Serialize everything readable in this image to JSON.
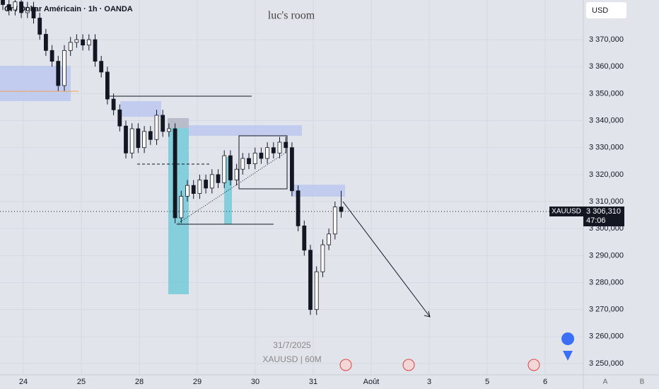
{
  "chart_data": {
    "type": "candlestick",
    "title": "Or / Dollar Américain · 1h · OANDA",
    "watermark": "luc's room",
    "currency": "USD",
    "symbol": "XAUUSD",
    "price_tag": "3 306,310",
    "countdown": "47:06",
    "date_label": "31/7/2025",
    "interval_label": "XAUUSD | 60M",
    "scale_buttons": [
      "A",
      "B"
    ],
    "categories": [
      "24",
      "25",
      "28",
      "29",
      "30",
      "31",
      "Août",
      "3",
      "5",
      "6"
    ],
    "open": [
      3385,
      3383,
      3381,
      3384,
      3380,
      3382,
      3378,
      3372,
      3366,
      3362,
      3353,
      3366,
      3369,
      3370,
      3368,
      3370,
      3362,
      3358,
      3348,
      3344,
      3338,
      3328,
      3337,
      3330,
      3336,
      3333,
      3342,
      3336,
      3337,
      3304,
      3312,
      3316,
      3313,
      3318,
      3315,
      3320,
      3317,
      3327,
      3318,
      3322,
      3326,
      3324,
      3328,
      3326,
      3330,
      3328,
      3332,
      3330,
      3314,
      3301,
      3292,
      3270,
      3284,
      3294,
      3298,
      3308
    ],
    "high": [
      3387,
      3385,
      3386,
      3386,
      3384,
      3384,
      3380,
      3374,
      3368,
      3364,
      3368,
      3371,
      3372,
      3372,
      3372,
      3372,
      3364,
      3360,
      3350,
      3346,
      3340,
      3339,
      3339,
      3338,
      3338,
      3344,
      3344,
      3339,
      3339,
      3314,
      3318,
      3318,
      3320,
      3320,
      3322,
      3322,
      3329,
      3329,
      3324,
      3328,
      3328,
      3330,
      3330,
      3332,
      3332,
      3334,
      3334,
      3332,
      3316,
      3303,
      3294,
      3286,
      3296,
      3300,
      3310,
      3314
    ],
    "low": [
      3381,
      3379,
      3379,
      3378,
      3378,
      3376,
      3370,
      3364,
      3360,
      3351,
      3351,
      3364,
      3367,
      3366,
      3366,
      3360,
      3356,
      3346,
      3342,
      3336,
      3326,
      3326,
      3328,
      3328,
      3331,
      3331,
      3334,
      3334,
      3302,
      3302,
      3310,
      3311,
      3311,
      3313,
      3313,
      3315,
      3315,
      3316,
      3316,
      3320,
      3322,
      3322,
      3324,
      3324,
      3326,
      3326,
      3328,
      3312,
      3299,
      3290,
      3268,
      3268,
      3282,
      3292,
      3296,
      3304
    ],
    "close": [
      3383,
      3381,
      3384,
      3380,
      3382,
      3378,
      3372,
      3366,
      3362,
      3353,
      3366,
      3369,
      3370,
      3368,
      3370,
      3362,
      3358,
      3348,
      3344,
      3338,
      3328,
      3337,
      3330,
      3336,
      3333,
      3342,
      3336,
      3337,
      3304,
      3312,
      3316,
      3313,
      3318,
      3315,
      3320,
      3317,
      3327,
      3318,
      3322,
      3326,
      3324,
      3328,
      3326,
      3330,
      3328,
      3332,
      3330,
      3314,
      3301,
      3292,
      3270,
      3284,
      3294,
      3298,
      3308,
      3306.31
    ],
    "up_color": "#ffffff",
    "down_color": "#131722",
    "ylim": [
      3245.8,
      3384.7
    ],
    "yticks": [
      {
        "value": 3250,
        "label": "3 250,000"
      },
      {
        "value": 3260,
        "label": "3 260,000"
      },
      {
        "value": 3270,
        "label": "3 270,000"
      },
      {
        "value": 3280,
        "label": "3 280,000"
      },
      {
        "value": 3290,
        "label": "3 290,000"
      },
      {
        "value": 3300,
        "label": "3 300,000"
      },
      {
        "value": 3310,
        "label": "3 310,000"
      },
      {
        "value": 3320,
        "label": "3 320,000"
      },
      {
        "value": 3330,
        "label": "3 330,000"
      },
      {
        "value": 3340,
        "label": "3 340,000"
      },
      {
        "value": 3350,
        "label": "3 350,000"
      },
      {
        "value": 3360,
        "label": "3 360,000"
      },
      {
        "value": 3370,
        "label": "3 370,000"
      }
    ],
    "grid": true
  }
}
